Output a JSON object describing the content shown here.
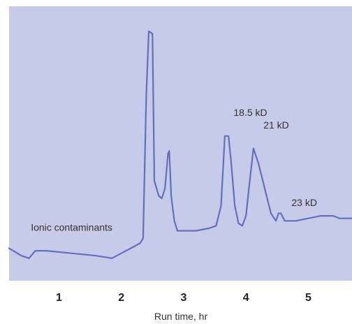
{
  "chart_data": {
    "type": "line",
    "title": "",
    "xlabel": "Run time, hr",
    "ylabel": "",
    "xlim": [
      0.2,
      5.7
    ],
    "ylim": [
      -0.1,
      1.0
    ],
    "grid": false,
    "legend": "none",
    "x_ticks": [
      "1",
      "2",
      "3",
      "4",
      "5"
    ],
    "annotations": [
      {
        "text": "Ionic contaminants",
        "x": 0.55,
        "y": 0.1
      },
      {
        "text": "18.5 kD",
        "x": 3.8,
        "y": 0.56
      },
      {
        "text": "21 kD",
        "x": 4.28,
        "y": 0.51
      },
      {
        "text": "23 kD",
        "x": 4.73,
        "y": 0.2
      }
    ],
    "series": [
      {
        "values": [
          [
            0.2,
            0.03
          ],
          [
            0.4,
            0.0
          ],
          [
            0.52,
            -0.01
          ],
          [
            0.62,
            0.02
          ],
          [
            0.8,
            0.02
          ],
          [
            1.2,
            0.01
          ],
          [
            1.6,
            0.0
          ],
          [
            1.85,
            -0.01
          ],
          [
            2.0,
            0.01
          ],
          [
            2.15,
            0.03
          ],
          [
            2.3,
            0.05
          ],
          [
            2.35,
            0.07
          ],
          [
            2.4,
            0.64
          ],
          [
            2.44,
            0.9
          ],
          [
            2.5,
            0.89
          ],
          [
            2.53,
            0.3
          ],
          [
            2.6,
            0.24
          ],
          [
            2.65,
            0.23
          ],
          [
            2.7,
            0.27
          ],
          [
            2.75,
            0.41
          ],
          [
            2.77,
            0.42
          ],
          [
            2.8,
            0.24
          ],
          [
            2.85,
            0.14
          ],
          [
            2.9,
            0.1
          ],
          [
            3.2,
            0.1
          ],
          [
            3.4,
            0.11
          ],
          [
            3.52,
            0.12
          ],
          [
            3.6,
            0.2
          ],
          [
            3.66,
            0.48
          ],
          [
            3.72,
            0.48
          ],
          [
            3.76,
            0.38
          ],
          [
            3.82,
            0.2
          ],
          [
            3.88,
            0.13
          ],
          [
            3.94,
            0.12
          ],
          [
            4.0,
            0.16
          ],
          [
            4.06,
            0.3
          ],
          [
            4.12,
            0.43
          ],
          [
            4.2,
            0.37
          ],
          [
            4.3,
            0.27
          ],
          [
            4.4,
            0.17
          ],
          [
            4.48,
            0.14
          ],
          [
            4.52,
            0.17
          ],
          [
            4.56,
            0.17
          ],
          [
            4.62,
            0.14
          ],
          [
            4.8,
            0.14
          ],
          [
            5.0,
            0.15
          ],
          [
            5.2,
            0.16
          ],
          [
            5.4,
            0.16
          ],
          [
            5.5,
            0.15
          ],
          [
            5.7,
            0.15
          ]
        ]
      }
    ]
  }
}
